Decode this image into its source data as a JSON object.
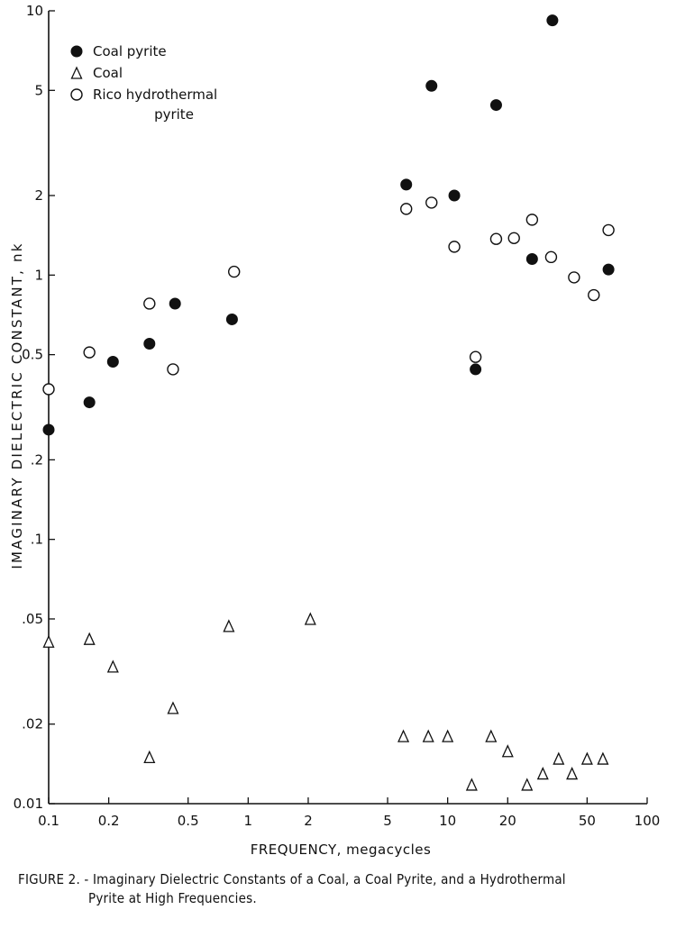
{
  "chart_data": {
    "type": "scatter",
    "xlabel": "FREQUENCY, megacycles",
    "ylabel": "IMAGINARY DIELECTRIC CONSTANT, nk",
    "x_scale": "log",
    "y_scale": "log",
    "xlim": [
      0.1,
      100
    ],
    "ylim": [
      0.01,
      10
    ],
    "x_ticks": [
      {
        "value": 0.1,
        "label": "0.1"
      },
      {
        "value": 0.2,
        "label": "0.2"
      },
      {
        "value": 0.5,
        "label": "0.5"
      },
      {
        "value": 1,
        "label": "1"
      },
      {
        "value": 2,
        "label": "2"
      },
      {
        "value": 5,
        "label": "5"
      },
      {
        "value": 10,
        "label": "10"
      },
      {
        "value": 20,
        "label": "20"
      },
      {
        "value": 50,
        "label": "50"
      },
      {
        "value": 100,
        "label": "100"
      }
    ],
    "y_ticks": [
      {
        "value": 0.01,
        "label": "0.01"
      },
      {
        "value": 0.02,
        "label": ".02"
      },
      {
        "value": 0.05,
        "label": ".05"
      },
      {
        "value": 0.1,
        "label": ".1"
      },
      {
        "value": 0.2,
        "label": ".2"
      },
      {
        "value": 0.5,
        "label": "0.5"
      },
      {
        "value": 1,
        "label": "1"
      },
      {
        "value": 2,
        "label": "2"
      },
      {
        "value": 5,
        "label": "5"
      },
      {
        "value": 10,
        "label": "10"
      }
    ],
    "legend_position": "top-left",
    "grid": false,
    "series": [
      {
        "name": "Coal pyrite",
        "marker": "filled-circle",
        "points": [
          [
            0.1,
            0.26
          ],
          [
            0.16,
            0.33
          ],
          [
            0.21,
            0.47
          ],
          [
            0.32,
            0.55
          ],
          [
            0.43,
            0.78
          ],
          [
            0.83,
            0.68
          ],
          [
            6.2,
            2.2
          ],
          [
            8.3,
            5.2
          ],
          [
            10.8,
            2.0
          ],
          [
            13.8,
            0.44
          ],
          [
            17.5,
            4.4
          ],
          [
            26.5,
            1.15
          ],
          [
            33.5,
            9.2
          ],
          [
            64.0,
            1.05
          ]
        ]
      },
      {
        "name": "Coal",
        "marker": "open-triangle",
        "points": [
          [
            0.1,
            0.041
          ],
          [
            0.16,
            0.042
          ],
          [
            0.21,
            0.033
          ],
          [
            0.32,
            0.015
          ],
          [
            0.42,
            0.023
          ],
          [
            0.8,
            0.047
          ],
          [
            2.05,
            0.05
          ],
          [
            6.0,
            0.018
          ],
          [
            8.0,
            0.018
          ],
          [
            10.0,
            0.018
          ],
          [
            13.2,
            0.0118
          ],
          [
            16.5,
            0.018
          ],
          [
            20.0,
            0.0158
          ],
          [
            25.0,
            0.0118
          ],
          [
            30.0,
            0.013
          ],
          [
            36.0,
            0.0148
          ],
          [
            42.0,
            0.013
          ],
          [
            50.0,
            0.0148
          ],
          [
            60.0,
            0.0148
          ]
        ]
      },
      {
        "name": "Rico hydrothermal pyrite",
        "marker": "open-circle",
        "points": [
          [
            0.1,
            0.37
          ],
          [
            0.16,
            0.51
          ],
          [
            0.32,
            0.78
          ],
          [
            0.42,
            0.44
          ],
          [
            0.85,
            1.03
          ],
          [
            6.2,
            1.78
          ],
          [
            8.3,
            1.88
          ],
          [
            10.8,
            1.28
          ],
          [
            13.8,
            0.49
          ],
          [
            17.5,
            1.37
          ],
          [
            21.5,
            1.38
          ],
          [
            26.5,
            1.62
          ],
          [
            33.0,
            1.17
          ],
          [
            43.0,
            0.98
          ],
          [
            54.0,
            0.84
          ],
          [
            64.0,
            1.48
          ]
        ]
      }
    ]
  },
  "caption": {
    "line1": "FIGURE 2. - Imaginary Dielectric Constants of a Coal, a Coal Pyrite, and a Hydrothermal",
    "line2": "Pyrite at High Frequencies."
  }
}
